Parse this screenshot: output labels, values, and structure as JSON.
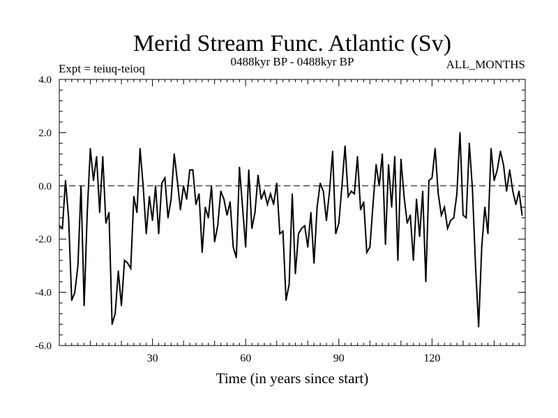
{
  "chart_data": {
    "type": "line",
    "title": "Merid Stream Func. Atlantic (Sv)",
    "subtitle_left": "Expt = teiuq-teioq",
    "subtitle_center": "0488kyr BP - 0488kyr BP",
    "subtitle_right": "ALL_MONTHS",
    "xlabel": "Time (in years since start)",
    "ylabel": "",
    "xlim": [
      0,
      150
    ],
    "ylim": [
      -6,
      4
    ],
    "xticks": [
      30,
      60,
      90,
      120
    ],
    "yticks": [
      4,
      2,
      0,
      -2,
      -4,
      -6
    ],
    "ytick_labels": [
      "4.0",
      "2.0",
      "0.0",
      "-2.0",
      "-4.0",
      "-6.0"
    ],
    "zero_line": true,
    "series": [
      {
        "name": "Merid Stream Func.",
        "color": "#000000",
        "x_start": 0,
        "x_step": 1,
        "values": [
          -1.5,
          -1.6,
          0.2,
          -1.2,
          -4.3,
          -4.0,
          -3.0,
          0.0,
          -4.5,
          -1.0,
          1.4,
          0.2,
          1.1,
          -1.0,
          1.1,
          -1.4,
          -1.0,
          -5.2,
          -4.8,
          -3.2,
          -4.5,
          -2.8,
          -2.9,
          -3.1,
          -0.4,
          -1.0,
          1.4,
          0.0,
          -1.8,
          -0.4,
          -1.3,
          0.0,
          -1.8,
          0.1,
          0.3,
          -1.2,
          -0.5,
          1.2,
          0.2,
          -0.9,
          0.0,
          -0.5,
          0.6,
          0.6,
          -0.7,
          -0.3,
          -2.5,
          -0.8,
          -1.2,
          0.0,
          -2.1,
          -1.5,
          -0.2,
          -0.5,
          -1.1,
          -0.6,
          -2.3,
          -2.7,
          0.7,
          -0.8,
          -2.3,
          0.6,
          -1.6,
          -1.0,
          0.4,
          -0.5,
          -0.2,
          -0.7,
          -0.3,
          -0.7,
          0.1,
          -1.8,
          -1.7,
          -4.3,
          -3.7,
          -0.3,
          -3.3,
          -1.8,
          -1.6,
          -1.5,
          -2.3,
          -1.0,
          -2.9,
          -0.8,
          0.1,
          -0.2,
          -1.3,
          -0.2,
          1.3,
          -1.8,
          -1.4,
          0.0,
          1.5,
          -0.4,
          -0.2,
          -0.3,
          1.1,
          -0.9,
          -0.6,
          -2.5,
          -2.3,
          -0.7,
          0.8,
          0.0,
          1.2,
          -2.2,
          0.8,
          -0.8,
          1.1,
          -2.8,
          1.0,
          -0.4,
          -1.4,
          -1.1,
          -2.8,
          -0.5,
          -1.9,
          -0.2,
          -3.6,
          0.2,
          0.3,
          1.4,
          -0.3,
          -1.1,
          -0.8,
          -1.6,
          -1.3,
          -1.2,
          -0.3,
          2.0,
          -1.1,
          -1.2,
          1.6,
          -0.1,
          -3.0,
          -5.3,
          -2.3,
          -0.8,
          -1.8,
          1.4,
          0.2,
          0.6,
          1.3,
          0.8,
          -0.2,
          0.6,
          -0.2,
          -0.7,
          -0.2,
          -1.1
        ]
      }
    ]
  }
}
